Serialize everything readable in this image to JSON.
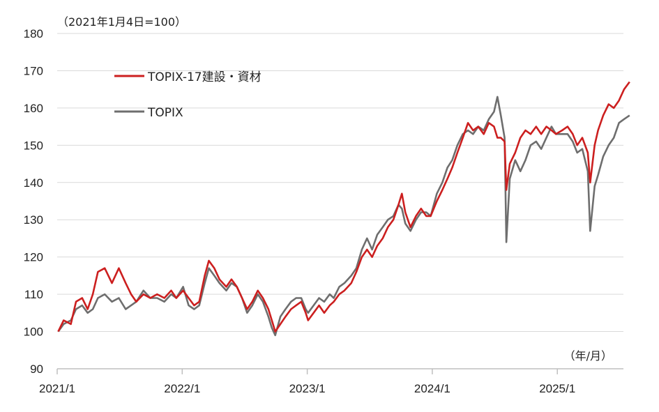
{
  "chart_data": {
    "type": "line",
    "title": "",
    "ylabel": "（2021年1月4日=100）",
    "xlabel": "（年/月）",
    "ylim": [
      90,
      180
    ],
    "yticks": [
      90,
      100,
      110,
      120,
      130,
      140,
      150,
      160,
      170,
      180
    ],
    "xlim": [
      "2021-01",
      "2025-07"
    ],
    "xtick_labels": [
      "2021/1",
      "2022/1",
      "2023/1",
      "2024/1",
      "2025/1"
    ],
    "grid": "horizontal",
    "legend_position": "top-left",
    "colors": {
      "construction": "#cc1f1f",
      "topix": "#6e6e6e",
      "grid": "#d9d9d9",
      "axis": "#bfbfbf"
    },
    "series": [
      {
        "name": "TOPIX-17建設・資材",
        "points": [
          [
            "2021-01-04",
            100
          ],
          [
            "2021-01-20",
            103
          ],
          [
            "2021-02-10",
            102
          ],
          [
            "2021-02-25",
            108
          ],
          [
            "2021-03-15",
            109
          ],
          [
            "2021-03-31",
            106
          ],
          [
            "2021-04-15",
            110
          ],
          [
            "2021-04-30",
            116
          ],
          [
            "2021-05-20",
            117
          ],
          [
            "2021-06-10",
            113
          ],
          [
            "2021-06-30",
            117
          ],
          [
            "2021-07-20",
            113
          ],
          [
            "2021-08-05",
            110
          ],
          [
            "2021-08-20",
            108
          ],
          [
            "2021-09-10",
            110
          ],
          [
            "2021-09-30",
            109
          ],
          [
            "2021-10-20",
            110
          ],
          [
            "2021-11-10",
            109
          ],
          [
            "2021-11-30",
            111
          ],
          [
            "2021-12-15",
            109
          ],
          [
            "2022-01-04",
            111
          ],
          [
            "2022-01-20",
            109
          ],
          [
            "2022-02-05",
            107
          ],
          [
            "2022-02-20",
            108
          ],
          [
            "2022-03-08",
            115
          ],
          [
            "2022-03-20",
            119
          ],
          [
            "2022-04-05",
            117
          ],
          [
            "2022-04-20",
            114
          ],
          [
            "2022-05-10",
            112
          ],
          [
            "2022-05-25",
            114
          ],
          [
            "2022-06-10",
            112
          ],
          [
            "2022-06-25",
            109
          ],
          [
            "2022-07-10",
            106
          ],
          [
            "2022-07-25",
            108
          ],
          [
            "2022-08-10",
            111
          ],
          [
            "2022-08-25",
            109
          ],
          [
            "2022-09-10",
            106
          ],
          [
            "2022-09-20",
            103
          ],
          [
            "2022-09-30",
            100
          ],
          [
            "2022-10-15",
            102
          ],
          [
            "2022-10-30",
            104
          ],
          [
            "2022-11-15",
            106
          ],
          [
            "2022-11-30",
            107
          ],
          [
            "2022-12-15",
            108
          ],
          [
            "2022-12-28",
            105
          ],
          [
            "2023-01-04",
            103
          ],
          [
            "2023-01-20",
            105
          ],
          [
            "2023-02-05",
            107
          ],
          [
            "2023-02-20",
            105
          ],
          [
            "2023-03-08",
            107
          ],
          [
            "2023-03-20",
            108
          ],
          [
            "2023-04-05",
            110
          ],
          [
            "2023-04-20",
            111
          ],
          [
            "2023-05-10",
            113
          ],
          [
            "2023-05-25",
            116
          ],
          [
            "2023-06-10",
            120
          ],
          [
            "2023-06-25",
            122
          ],
          [
            "2023-07-10",
            120
          ],
          [
            "2023-07-25",
            123
          ],
          [
            "2023-08-10",
            125
          ],
          [
            "2023-08-25",
            128
          ],
          [
            "2023-09-10",
            130
          ],
          [
            "2023-09-25",
            134
          ],
          [
            "2023-10-05",
            137
          ],
          [
            "2023-10-15",
            132
          ],
          [
            "2023-10-30",
            128
          ],
          [
            "2023-11-15",
            131
          ],
          [
            "2023-11-30",
            133
          ],
          [
            "2023-12-15",
            131
          ],
          [
            "2023-12-28",
            131
          ],
          [
            "2024-01-15",
            135
          ],
          [
            "2024-01-31",
            138
          ],
          [
            "2024-02-15",
            141
          ],
          [
            "2024-02-29",
            144
          ],
          [
            "2024-03-15",
            148
          ],
          [
            "2024-03-31",
            152
          ],
          [
            "2024-04-15",
            156
          ],
          [
            "2024-04-30",
            154
          ],
          [
            "2024-05-15",
            155
          ],
          [
            "2024-05-31",
            153
          ],
          [
            "2024-06-15",
            156
          ],
          [
            "2024-06-30",
            155
          ],
          [
            "2024-07-10",
            152
          ],
          [
            "2024-07-20",
            152
          ],
          [
            "2024-07-31",
            151
          ],
          [
            "2024-08-05",
            138
          ],
          [
            "2024-08-15",
            145
          ],
          [
            "2024-08-31",
            148
          ],
          [
            "2024-09-15",
            152
          ],
          [
            "2024-09-30",
            154
          ],
          [
            "2024-10-15",
            153
          ],
          [
            "2024-10-31",
            155
          ],
          [
            "2024-11-15",
            153
          ],
          [
            "2024-11-30",
            155
          ],
          [
            "2024-12-15",
            154
          ],
          [
            "2024-12-28",
            153
          ],
          [
            "2025-01-15",
            154
          ],
          [
            "2025-01-31",
            155
          ],
          [
            "2025-02-15",
            153
          ],
          [
            "2025-02-28",
            150
          ],
          [
            "2025-03-15",
            152
          ],
          [
            "2025-03-31",
            148
          ],
          [
            "2025-04-07",
            140
          ],
          [
            "2025-04-20",
            150
          ],
          [
            "2025-04-30",
            154
          ],
          [
            "2025-05-15",
            158
          ],
          [
            "2025-05-31",
            161
          ],
          [
            "2025-06-15",
            160
          ],
          [
            "2025-06-30",
            162
          ],
          [
            "2025-07-15",
            165
          ],
          [
            "2025-07-31",
            167
          ]
        ]
      },
      {
        "name": "TOPIX",
        "points": [
          [
            "2021-01-04",
            100
          ],
          [
            "2021-01-20",
            102
          ],
          [
            "2021-02-10",
            103
          ],
          [
            "2021-02-25",
            106
          ],
          [
            "2021-03-15",
            107
          ],
          [
            "2021-03-31",
            105
          ],
          [
            "2021-04-15",
            106
          ],
          [
            "2021-04-30",
            109
          ],
          [
            "2021-05-20",
            110
          ],
          [
            "2021-06-10",
            108
          ],
          [
            "2021-06-30",
            109
          ],
          [
            "2021-07-20",
            106
          ],
          [
            "2021-08-05",
            107
          ],
          [
            "2021-08-20",
            108
          ],
          [
            "2021-09-10",
            111
          ],
          [
            "2021-09-30",
            109
          ],
          [
            "2021-10-20",
            109
          ],
          [
            "2021-11-10",
            108
          ],
          [
            "2021-11-30",
            110
          ],
          [
            "2021-12-15",
            109
          ],
          [
            "2022-01-04",
            112
          ],
          [
            "2022-01-20",
            107
          ],
          [
            "2022-02-05",
            106
          ],
          [
            "2022-02-20",
            107
          ],
          [
            "2022-03-08",
            113
          ],
          [
            "2022-03-20",
            117
          ],
          [
            "2022-04-05",
            115
          ],
          [
            "2022-04-20",
            113
          ],
          [
            "2022-05-10",
            111
          ],
          [
            "2022-05-25",
            113
          ],
          [
            "2022-06-10",
            112
          ],
          [
            "2022-06-25",
            109
          ],
          [
            "2022-07-10",
            105
          ],
          [
            "2022-07-25",
            107
          ],
          [
            "2022-08-10",
            110
          ],
          [
            "2022-08-25",
            108
          ],
          [
            "2022-09-10",
            104
          ],
          [
            "2022-09-20",
            101
          ],
          [
            "2022-09-30",
            99
          ],
          [
            "2022-10-15",
            104
          ],
          [
            "2022-10-30",
            106
          ],
          [
            "2022-11-15",
            108
          ],
          [
            "2022-11-30",
            109
          ],
          [
            "2022-12-15",
            109
          ],
          [
            "2022-12-28",
            106
          ],
          [
            "2023-01-04",
            105
          ],
          [
            "2023-01-20",
            107
          ],
          [
            "2023-02-05",
            109
          ],
          [
            "2023-02-20",
            108
          ],
          [
            "2023-03-08",
            110
          ],
          [
            "2023-03-20",
            109
          ],
          [
            "2023-04-05",
            112
          ],
          [
            "2023-04-20",
            113
          ],
          [
            "2023-05-10",
            115
          ],
          [
            "2023-05-25",
            117
          ],
          [
            "2023-06-10",
            122
          ],
          [
            "2023-06-25",
            125
          ],
          [
            "2023-07-10",
            122
          ],
          [
            "2023-07-25",
            126
          ],
          [
            "2023-08-10",
            128
          ],
          [
            "2023-08-25",
            130
          ],
          [
            "2023-09-10",
            131
          ],
          [
            "2023-09-25",
            134
          ],
          [
            "2023-10-05",
            133
          ],
          [
            "2023-10-15",
            129
          ],
          [
            "2023-10-30",
            127
          ],
          [
            "2023-11-15",
            130
          ],
          [
            "2023-11-30",
            132
          ],
          [
            "2023-12-15",
            132
          ],
          [
            "2023-12-28",
            131
          ],
          [
            "2024-01-15",
            137
          ],
          [
            "2024-01-31",
            140
          ],
          [
            "2024-02-15",
            144
          ],
          [
            "2024-02-29",
            146
          ],
          [
            "2024-03-15",
            150
          ],
          [
            "2024-03-31",
            153
          ],
          [
            "2024-04-15",
            154
          ],
          [
            "2024-04-30",
            153
          ],
          [
            "2024-05-15",
            155
          ],
          [
            "2024-05-31",
            154
          ],
          [
            "2024-06-15",
            157
          ],
          [
            "2024-06-30",
            159
          ],
          [
            "2024-07-10",
            163
          ],
          [
            "2024-07-20",
            158
          ],
          [
            "2024-07-31",
            152
          ],
          [
            "2024-08-05",
            124
          ],
          [
            "2024-08-15",
            141
          ],
          [
            "2024-08-31",
            146
          ],
          [
            "2024-09-15",
            143
          ],
          [
            "2024-09-30",
            146
          ],
          [
            "2024-10-15",
            150
          ],
          [
            "2024-10-31",
            151
          ],
          [
            "2024-11-15",
            149
          ],
          [
            "2024-11-30",
            152
          ],
          [
            "2024-12-15",
            155
          ],
          [
            "2024-12-28",
            153
          ],
          [
            "2025-01-15",
            153
          ],
          [
            "2025-01-31",
            153
          ],
          [
            "2025-02-15",
            151
          ],
          [
            "2025-02-28",
            148
          ],
          [
            "2025-03-15",
            149
          ],
          [
            "2025-03-31",
            143
          ],
          [
            "2025-04-07",
            127
          ],
          [
            "2025-04-20",
            139
          ],
          [
            "2025-04-30",
            142
          ],
          [
            "2025-05-15",
            147
          ],
          [
            "2025-05-31",
            150
          ],
          [
            "2025-06-15",
            152
          ],
          [
            "2025-06-30",
            156
          ],
          [
            "2025-07-15",
            157
          ],
          [
            "2025-07-31",
            158
          ]
        ]
      }
    ]
  }
}
